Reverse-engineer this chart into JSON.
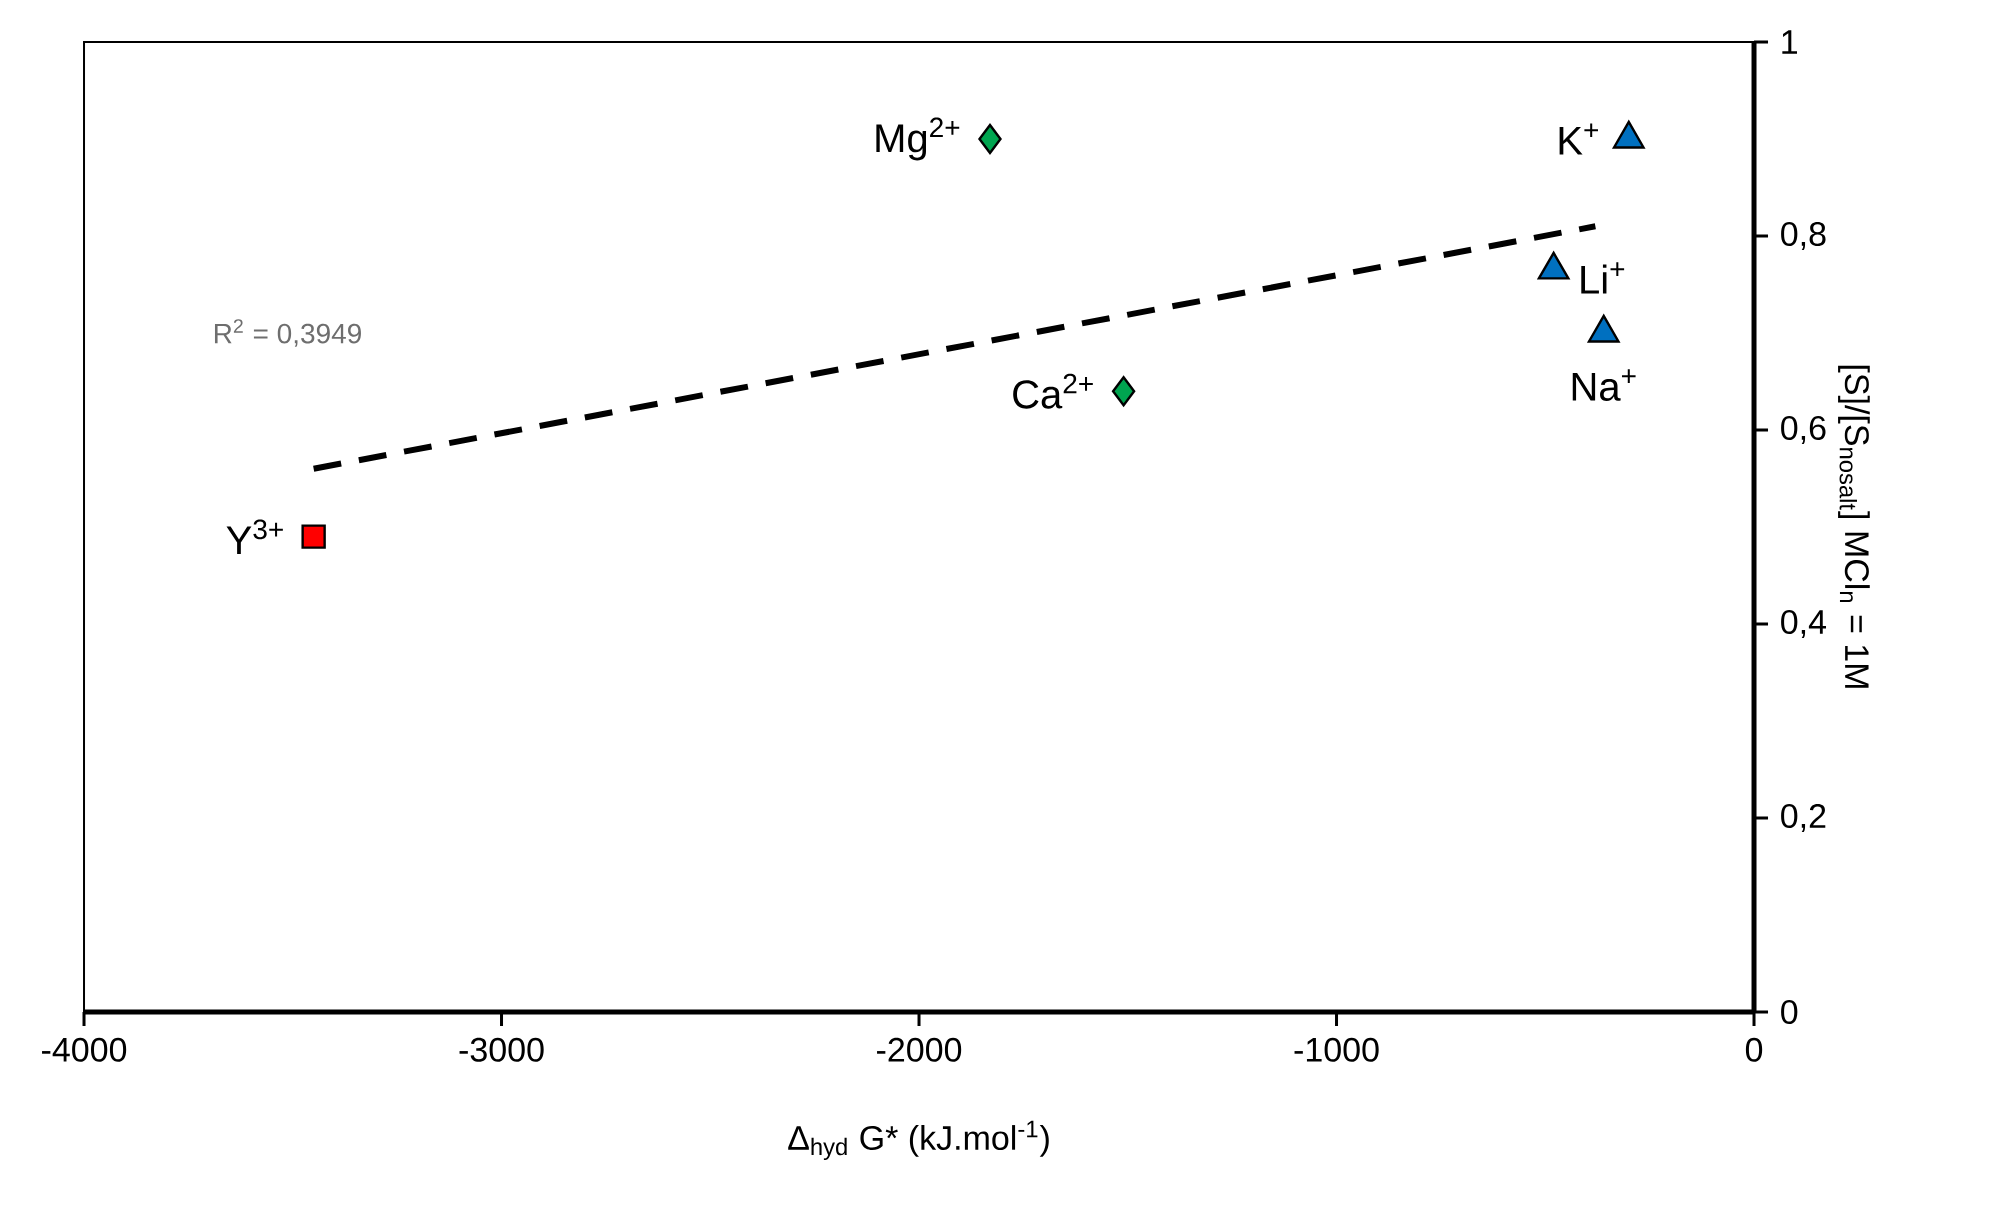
{
  "chart_data": {
    "type": "scatter",
    "xlabel": "Δ$_{hyd}$ G* (kJ.mol$^{-1}$)",
    "ylabel": "[S]/[S$_{nosalt}$] MCl$_{n}$ = 1M",
    "xlim": [
      -4000,
      0
    ],
    "ylim": [
      0,
      1
    ],
    "xticks": [
      -4000,
      -3000,
      -2000,
      -1000,
      0
    ],
    "yticks": [
      0,
      {
        "value": 0.2,
        "label": "0,2"
      },
      {
        "value": 0.4,
        "label": "0,4"
      },
      {
        "value": 0.6,
        "label": "0,6"
      },
      {
        "value": 0.8,
        "label": "0,8"
      },
      1
    ],
    "annotations": [
      "R$^{2}$ = 0,3949"
    ],
    "series": [
      {
        "name": "Y$^{3+}$",
        "color": "#ff0000",
        "marker": "square",
        "x": [
          -3450
        ],
        "values": [
          0.49
        ]
      },
      {
        "name": "Mg$^{2+}$",
        "color": "#00a550",
        "marker": "diamond",
        "x": [
          -1830
        ],
        "values": [
          0.9
        ]
      },
      {
        "name": "Ca$^{2+}$",
        "color": "#00a550",
        "marker": "diamond",
        "x": [
          -1510
        ],
        "values": [
          0.64
        ]
      },
      {
        "name": "K$^{+}$",
        "color": "#0070c0",
        "marker": "triangle",
        "x": [
          -300
        ],
        "values": [
          0.9
        ]
      },
      {
        "name": "Li$^{+}$",
        "color": "#0070c0",
        "marker": "triangle",
        "x": [
          -480
        ],
        "values": [
          0.765
        ]
      },
      {
        "name": "Na$^{+}$",
        "color": "#0070c0",
        "marker": "triangle",
        "x": [
          -360
        ],
        "values": [
          0.7
        ]
      },
      {
        "type": "line",
        "color": "#000000",
        "marker": "none",
        "line_style": "dashed",
        "x": [
          -3450,
          -380
        ],
        "values": [
          0.56,
          0.81
        ]
      }
    ]
  }
}
